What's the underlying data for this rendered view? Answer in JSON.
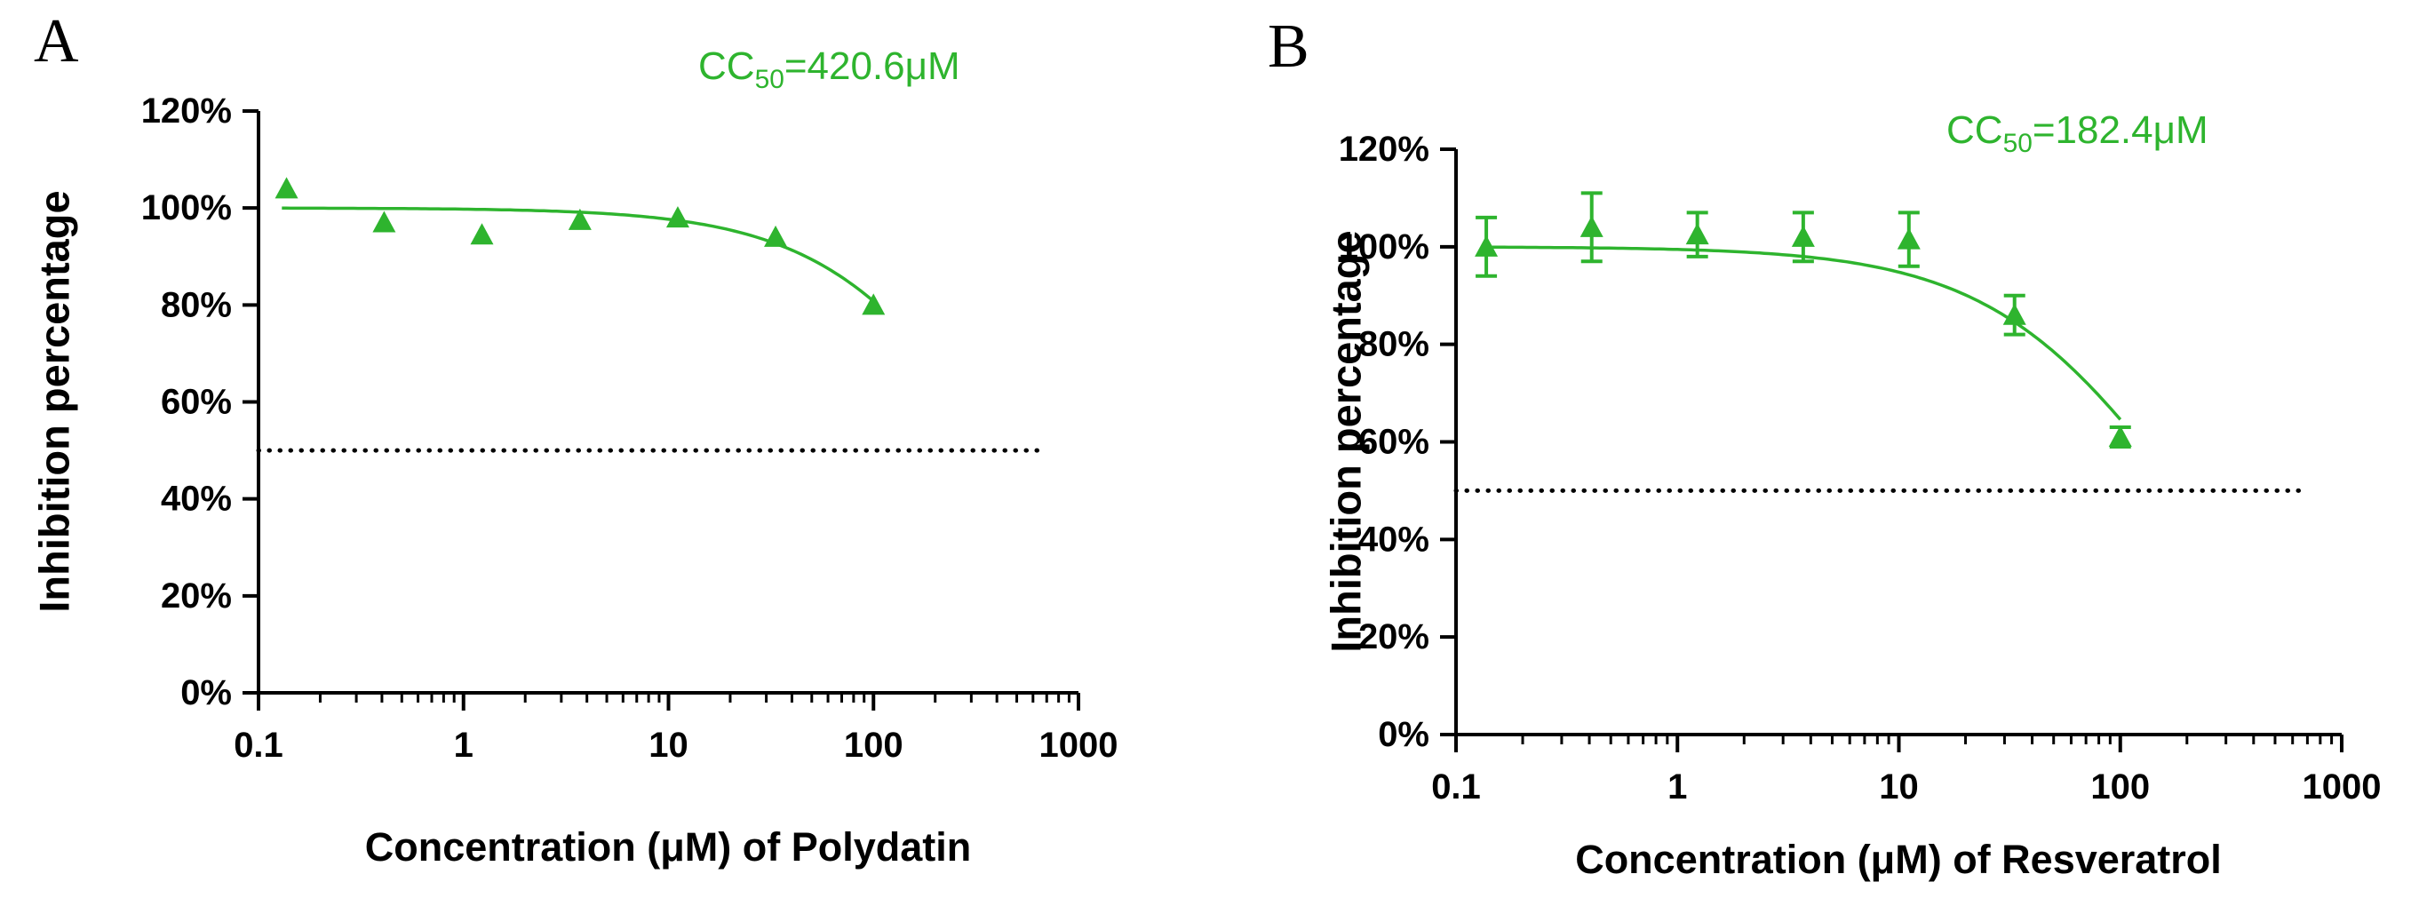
{
  "colors": {
    "green": "#2eb42e",
    "axis": "#000000",
    "background": "#ffffff"
  },
  "chart_data": [
    {
      "type": "scatter",
      "panel_label": "A",
      "title": "",
      "xlabel": "Concentration (μM) of Polydatin",
      "ylabel": "Inhibition percentage",
      "x_scale": "log",
      "xlim": [
        0.1,
        1000
      ],
      "ylim": [
        0,
        120
      ],
      "x_ticks": [
        0.1,
        1,
        10,
        100,
        1000
      ],
      "x_tick_labels": [
        "0.1",
        "1",
        "10",
        "100",
        "1000"
      ],
      "y_ticks": [
        0,
        20,
        40,
        60,
        80,
        100,
        120
      ],
      "y_tick_labels": [
        "0%",
        "20%",
        "40%",
        "60%",
        "80%",
        "100%",
        "120%"
      ],
      "grid": false,
      "legend": false,
      "annotation": {
        "prefix": "CC",
        "sub": "50",
        "suffix": "=420.6μM"
      },
      "fit": {
        "model": "inhibition-sigmoid",
        "cc50": 420.6,
        "hill": 1,
        "top": 100,
        "x_start": 0.13,
        "x_end": 100
      },
      "reference_line": {
        "y": 50,
        "x_start": 0.1,
        "x_end": 700,
        "style": "dotted"
      },
      "series": [
        {
          "name": "Polydatin",
          "marker": "triangle",
          "color": "#2eb42e",
          "x": [
            0.137,
            0.41,
            1.23,
            3.7,
            11.1,
            33.3,
            100
          ],
          "y": [
            104,
            97,
            94.5,
            97.5,
            98,
            94,
            80
          ],
          "yerr": [
            0,
            0,
            0,
            0,
            0,
            0,
            0
          ]
        }
      ]
    },
    {
      "type": "scatter",
      "panel_label": "B",
      "title": "",
      "xlabel": "Concentration (μM) of Resveratrol",
      "ylabel": "Inhibition percentage",
      "x_scale": "log",
      "xlim": [
        0.1,
        1000
      ],
      "ylim": [
        0,
        120
      ],
      "x_ticks": [
        0.1,
        1,
        10,
        100,
        1000
      ],
      "x_tick_labels": [
        "0.1",
        "1",
        "10",
        "100",
        "1000"
      ],
      "y_ticks": [
        0,
        20,
        40,
        60,
        80,
        100,
        120
      ],
      "y_tick_labels": [
        "0%",
        "20%",
        "40%",
        "60%",
        "80%",
        "100%",
        "120%"
      ],
      "grid": false,
      "legend": false,
      "annotation": {
        "prefix": "CC",
        "sub": "50",
        "suffix": "=182.4μM"
      },
      "fit": {
        "model": "inhibition-sigmoid",
        "cc50": 182.4,
        "hill": 1,
        "top": 100,
        "x_start": 0.13,
        "x_end": 100
      },
      "reference_line": {
        "y": 50,
        "x_start": 0.1,
        "x_end": 700,
        "style": "dotted"
      },
      "series": [
        {
          "name": "Resveratrol",
          "marker": "triangle",
          "color": "#2eb42e",
          "x": [
            0.137,
            0.41,
            1.23,
            3.7,
            11.1,
            33.3,
            100
          ],
          "y": [
            100,
            104,
            102.5,
            102,
            101.5,
            86,
            61
          ],
          "yerr": [
            6,
            7,
            4.5,
            5,
            5.5,
            4,
            2
          ]
        }
      ]
    }
  ]
}
